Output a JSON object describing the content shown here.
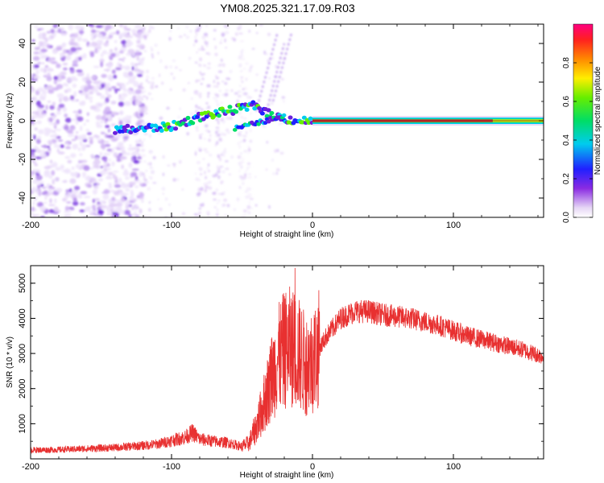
{
  "title": "YM08.2025.321.17.09.R03",
  "chart_data": [
    {
      "type": "heatmap",
      "name": "spectrogram",
      "xlabel": "Height of straight line (km)",
      "ylabel": "Frequency (Hz)",
      "xlim": [
        -200,
        164
      ],
      "ylim": [
        -50,
        50
      ],
      "xticks": [
        -200,
        -100,
        0,
        100
      ],
      "xtick_labels": [
        "-200",
        "-100",
        "0",
        "100"
      ],
      "yticks": [
        -40,
        -20,
        0,
        20,
        40
      ],
      "ytick_labels": [
        "-40",
        "-20",
        "0",
        "20",
        "40"
      ],
      "colorbar": {
        "label": "Normalized spectral amplitude",
        "range": [
          0,
          1
        ],
        "ticks": [
          0.0,
          0.2,
          0.4,
          0.6,
          0.8
        ],
        "tick_labels": [
          "0.0",
          "0.2",
          "0.4",
          "0.6",
          "0.8"
        ]
      },
      "features": {
        "carrier_band": {
          "x_range": [
            0,
            164
          ],
          "frequency": 0,
          "amplitude": 1.0
        },
        "noise_region": {
          "x_range": [
            -200,
            -130
          ],
          "frequency_range": [
            -50,
            50
          ],
          "amplitude": 0.3
        },
        "dispersed_trace": {
          "x": [
            -140,
            -120,
            -100,
            -80,
            -60,
            -40,
            -30,
            -20,
            -10,
            0
          ],
          "frequency": [
            -5,
            -4,
            -3,
            2,
            5,
            8,
            3,
            1,
            0,
            0
          ]
        }
      }
    },
    {
      "type": "line",
      "name": "snr",
      "xlabel": "Height of straight line (km)",
      "ylabel": "SNR (10 * v/v)",
      "xlim": [
        -200,
        164
      ],
      "ylim": [
        0,
        5500
      ],
      "xticks": [
        -200,
        -100,
        0,
        100
      ],
      "xtick_labels": [
        "-200",
        "-100",
        "0",
        "100"
      ],
      "yticks": [
        1000,
        2000,
        3000,
        4000,
        5000
      ],
      "ytick_labels": [
        "1000",
        "2000",
        "3000",
        "4000",
        "5000"
      ],
      "series": [
        {
          "name": "SNR",
          "color": "#e83030",
          "x": [
            -200,
            -180,
            -160,
            -140,
            -120,
            -110,
            -100,
            -90,
            -85,
            -80,
            -70,
            -60,
            -50,
            -45,
            -40,
            -35,
            -30,
            -25,
            -20,
            -15,
            -10,
            -5,
            0,
            10,
            20,
            30,
            40,
            50,
            60,
            70,
            80,
            90,
            100,
            110,
            120,
            130,
            140,
            150,
            164
          ],
          "values": [
            250,
            260,
            290,
            320,
            380,
            420,
            520,
            620,
            750,
            560,
            500,
            460,
            350,
            450,
            900,
            1500,
            2200,
            2800,
            3100,
            3200,
            3000,
            2700,
            2800,
            3500,
            4000,
            4200,
            4200,
            4100,
            4050,
            4000,
            3900,
            3800,
            3650,
            3500,
            3400,
            3300,
            3200,
            3100,
            2900
          ]
        }
      ]
    }
  ],
  "colors": {
    "snr_line": "#e83030",
    "axis": "#000000",
    "background": "#ffffff"
  }
}
